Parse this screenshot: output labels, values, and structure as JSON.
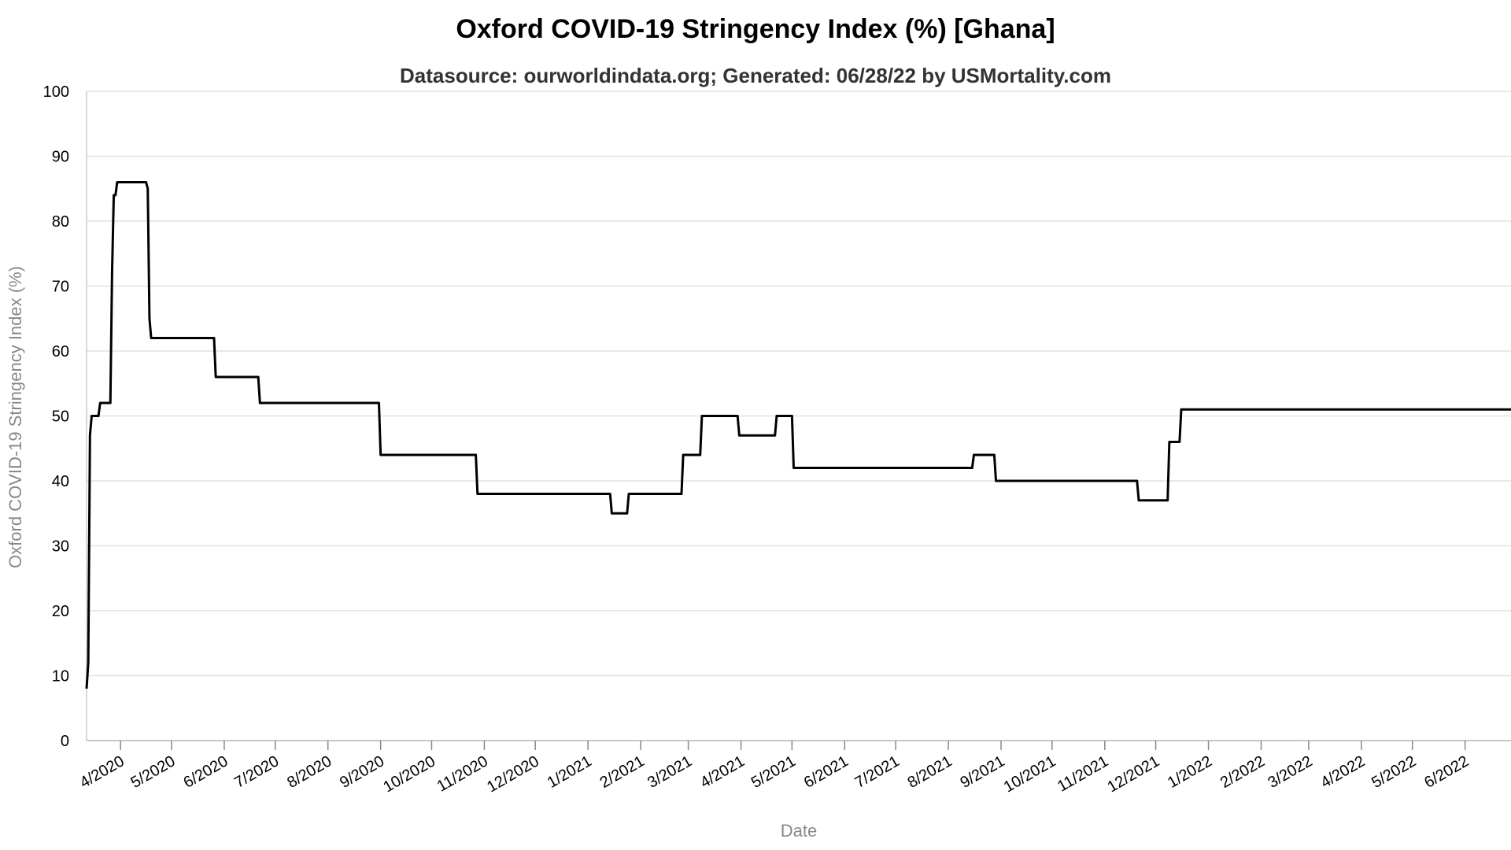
{
  "chart_data": {
    "type": "line",
    "title": "Oxford COVID-19 Stringency Index (%) [Ghana]",
    "subtitle": "Datasource: ourworldindata.org; Generated: 06/28/22 by USMortality.com",
    "xlabel": "Date",
    "ylabel": "Oxford COVID-19 Stringency Index (%)",
    "ylim": [
      0,
      100
    ],
    "xlim": [
      "2020-03-12",
      "2022-06-28"
    ],
    "y_ticks": [
      0,
      10,
      20,
      30,
      40,
      50,
      60,
      70,
      80,
      90,
      100
    ],
    "x_ticks": [
      {
        "date": "2020-04-01",
        "label": "4/2020"
      },
      {
        "date": "2020-05-01",
        "label": "5/2020"
      },
      {
        "date": "2020-06-01",
        "label": "6/2020"
      },
      {
        "date": "2020-07-01",
        "label": "7/2020"
      },
      {
        "date": "2020-08-01",
        "label": "8/2020"
      },
      {
        "date": "2020-09-01",
        "label": "9/2020"
      },
      {
        "date": "2020-10-01",
        "label": "10/2020"
      },
      {
        "date": "2020-11-01",
        "label": "11/2020"
      },
      {
        "date": "2020-12-01",
        "label": "12/2020"
      },
      {
        "date": "2021-01-01",
        "label": "1/2021"
      },
      {
        "date": "2021-02-01",
        "label": "2/2021"
      },
      {
        "date": "2021-03-01",
        "label": "3/2021"
      },
      {
        "date": "2021-04-01",
        "label": "4/2021"
      },
      {
        "date": "2021-05-01",
        "label": "5/2021"
      },
      {
        "date": "2021-06-01",
        "label": "6/2021"
      },
      {
        "date": "2021-07-01",
        "label": "7/2021"
      },
      {
        "date": "2021-08-01",
        "label": "8/2021"
      },
      {
        "date": "2021-09-01",
        "label": "9/2021"
      },
      {
        "date": "2021-10-01",
        "label": "10/2021"
      },
      {
        "date": "2021-11-01",
        "label": "11/2021"
      },
      {
        "date": "2021-12-01",
        "label": "12/2021"
      },
      {
        "date": "2022-01-01",
        "label": "1/2022"
      },
      {
        "date": "2022-02-01",
        "label": "2/2022"
      },
      {
        "date": "2022-03-01",
        "label": "3/2022"
      },
      {
        "date": "2022-04-01",
        "label": "4/2022"
      },
      {
        "date": "2022-05-01",
        "label": "5/2022"
      },
      {
        "date": "2022-06-01",
        "label": "6/2022"
      }
    ],
    "grid": true,
    "series": [
      {
        "color": "#000000",
        "points": [
          [
            "2020-03-12",
            8
          ],
          [
            "2020-03-13",
            12
          ],
          [
            "2020-03-14",
            47
          ],
          [
            "2020-03-15",
            50
          ],
          [
            "2020-03-19",
            50
          ],
          [
            "2020-03-20",
            52
          ],
          [
            "2020-03-26",
            52
          ],
          [
            "2020-03-27",
            72
          ],
          [
            "2020-03-28",
            84
          ],
          [
            "2020-03-29",
            84
          ],
          [
            "2020-03-30",
            86
          ],
          [
            "2020-04-16",
            86
          ],
          [
            "2020-04-17",
            85
          ],
          [
            "2020-04-18",
            65
          ],
          [
            "2020-04-19",
            62
          ],
          [
            "2020-05-26",
            62
          ],
          [
            "2020-05-27",
            56
          ],
          [
            "2020-06-21",
            56
          ],
          [
            "2020-06-22",
            52
          ],
          [
            "2020-08-31",
            52
          ],
          [
            "2020-09-01",
            44
          ],
          [
            "2020-10-27",
            44
          ],
          [
            "2020-10-28",
            38
          ],
          [
            "2021-01-14",
            38
          ],
          [
            "2021-01-15",
            35
          ],
          [
            "2021-01-24",
            35
          ],
          [
            "2021-01-25",
            38
          ],
          [
            "2021-02-25",
            38
          ],
          [
            "2021-02-26",
            44
          ],
          [
            "2021-03-08",
            44
          ],
          [
            "2021-03-09",
            50
          ],
          [
            "2021-03-30",
            50
          ],
          [
            "2021-03-31",
            47
          ],
          [
            "2021-04-21",
            47
          ],
          [
            "2021-04-22",
            50
          ],
          [
            "2021-05-01",
            50
          ],
          [
            "2021-05-02",
            42
          ],
          [
            "2021-08-15",
            42
          ],
          [
            "2021-08-16",
            44
          ],
          [
            "2021-08-28",
            44
          ],
          [
            "2021-08-29",
            40
          ],
          [
            "2021-11-20",
            40
          ],
          [
            "2021-11-21",
            37
          ],
          [
            "2021-12-08",
            37
          ],
          [
            "2021-12-09",
            46
          ],
          [
            "2021-12-15",
            46
          ],
          [
            "2021-12-16",
            51
          ],
          [
            "2022-06-28",
            51
          ]
        ]
      }
    ]
  }
}
